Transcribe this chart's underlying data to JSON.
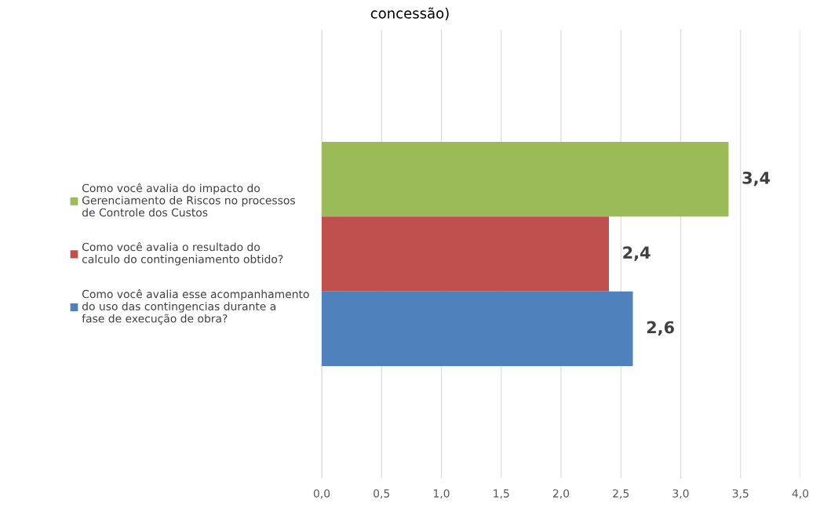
{
  "chart_data": {
    "type": "bar",
    "orientation": "horizontal",
    "title": "concessão)",
    "categories": [
      null
    ],
    "series": [
      {
        "name": "Como você avalia do impacto do Gerenciamento de Riscos no processos de Controle dos Custos",
        "color": "#9bbb59",
        "values": [
          3.4
        ],
        "value_labels": [
          "3,4"
        ]
      },
      {
        "name": "Como você avalia o resultado do calculo do contingeniamento obtido?",
        "color": "#c0504d",
        "values": [
          2.4
        ],
        "value_labels": [
          "2,4"
        ]
      },
      {
        "name": "Como você avalia esse acompanhamento do uso das contingencias durante a fase de execução de obra?",
        "color": "#4f81bd",
        "values": [
          2.6
        ],
        "value_labels": [
          "2,6"
        ]
      }
    ],
    "xlim": [
      0,
      4
    ],
    "xticks": [
      {
        "value": 0,
        "label": "0,0"
      },
      {
        "value": 0.5,
        "label": "0,5"
      },
      {
        "value": 1,
        "label": "1,0"
      },
      {
        "value": 1.5,
        "label": "1,5"
      },
      {
        "value": 2,
        "label": "2,0"
      },
      {
        "value": 2.5,
        "label": "2,5"
      },
      {
        "value": 3,
        "label": "3,0"
      },
      {
        "value": 3.5,
        "label": "3,5"
      },
      {
        "value": 4,
        "label": "4,0"
      }
    ],
    "grid": "x",
    "legend": "left"
  }
}
